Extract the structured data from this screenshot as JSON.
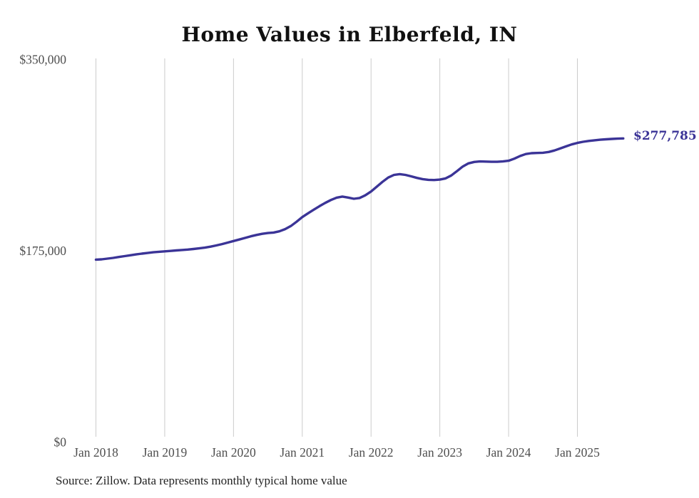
{
  "title": "Home Values in Elberfeld, IN",
  "source_note": "Source: Zillow. Data represents monthly typical home value",
  "chart_data": {
    "type": "line",
    "title": "Home Values in Elberfeld, IN",
    "series_name": "Typical home value (monthly)",
    "line_color": "#3b3497",
    "grid_color": "#cbcbcb",
    "gridlines": "vertical-only",
    "legend_position": "none",
    "ylim": [
      0,
      350000
    ],
    "end_label": "$277,785",
    "last_value": 277785,
    "y_ticks": [
      {
        "label": "$350,000",
        "value": 350000
      },
      {
        "label": "$175,000",
        "value": 175000
      },
      {
        "label": "$0",
        "value": 0
      }
    ],
    "x_ticks": [
      {
        "label": "Jan 2018",
        "month_index": 0
      },
      {
        "label": "Jan 2019",
        "month_index": 12
      },
      {
        "label": "Jan 2020",
        "month_index": 24
      },
      {
        "label": "Jan 2021",
        "month_index": 36
      },
      {
        "label": "Jan 2022",
        "month_index": 48
      },
      {
        "label": "Jan 2023",
        "month_index": 60
      },
      {
        "label": "Jan 2024",
        "month_index": 72
      },
      {
        "label": "Jan 2025",
        "month_index": 84
      }
    ],
    "x": [
      "2018-01",
      "2018-02",
      "2018-03",
      "2018-04",
      "2018-05",
      "2018-06",
      "2018-07",
      "2018-08",
      "2018-09",
      "2018-10",
      "2018-11",
      "2018-12",
      "2019-01",
      "2019-02",
      "2019-03",
      "2019-04",
      "2019-05",
      "2019-06",
      "2019-07",
      "2019-08",
      "2019-09",
      "2019-10",
      "2019-11",
      "2019-12",
      "2020-01",
      "2020-02",
      "2020-03",
      "2020-04",
      "2020-05",
      "2020-06",
      "2020-07",
      "2020-08",
      "2020-09",
      "2020-10",
      "2020-11",
      "2020-12",
      "2021-01",
      "2021-02",
      "2021-03",
      "2021-04",
      "2021-05",
      "2021-06",
      "2021-07",
      "2021-08",
      "2021-09",
      "2021-10",
      "2021-11",
      "2021-12",
      "2022-01",
      "2022-02",
      "2022-03",
      "2022-04",
      "2022-05",
      "2022-06",
      "2022-07",
      "2022-08",
      "2022-09",
      "2022-10",
      "2022-11",
      "2022-12",
      "2023-01",
      "2023-02",
      "2023-03",
      "2023-04",
      "2023-05",
      "2023-06",
      "2023-07",
      "2023-08",
      "2023-09",
      "2023-10",
      "2023-11",
      "2023-12",
      "2024-01",
      "2024-02",
      "2024-03",
      "2024-04",
      "2024-05",
      "2024-06",
      "2024-07",
      "2024-08",
      "2024-09",
      "2024-10",
      "2024-11",
      "2024-12",
      "2025-01",
      "2025-02",
      "2025-03",
      "2025-04",
      "2025-05",
      "2025-06",
      "2025-07",
      "2025-08",
      "2025-09"
    ],
    "values": [
      166900,
      167200,
      167800,
      168500,
      169300,
      170100,
      170900,
      171700,
      172400,
      173000,
      173600,
      174100,
      174500,
      174900,
      175300,
      175700,
      176100,
      176600,
      177200,
      177900,
      178800,
      179900,
      181100,
      182500,
      183900,
      185300,
      186700,
      188200,
      189500,
      190500,
      191200,
      191700,
      192800,
      194800,
      197600,
      201500,
      205800,
      209300,
      212600,
      215800,
      218800,
      221500,
      223600,
      224600,
      223700,
      222600,
      223300,
      225800,
      229200,
      233600,
      238100,
      242000,
      244400,
      245100,
      244400,
      243100,
      241700,
      240600,
      239900,
      239700,
      240100,
      241200,
      243900,
      247900,
      252100,
      255000,
      256300,
      256700,
      256600,
      256400,
      256400,
      256700,
      257400,
      259300,
      261700,
      263500,
      264300,
      264500,
      264700,
      265400,
      266800,
      268600,
      270500,
      272300,
      273700,
      274700,
      275500,
      276100,
      276600,
      277000,
      277300,
      277600,
      277785
    ]
  }
}
